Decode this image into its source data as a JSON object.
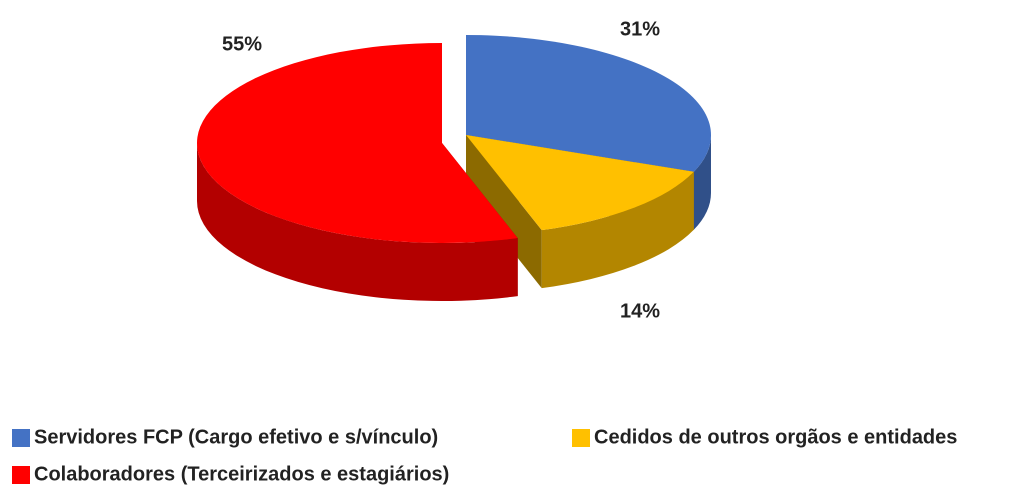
{
  "chart_data": {
    "type": "pie",
    "categories": [
      "Servidores FCP (Cargo efetivo e s/vínculo)",
      "Cedidos de outros orgãos e entidades",
      "Colaboradores (Terceirizados e estagiários)"
    ],
    "values": [
      31,
      14,
      55
    ],
    "value_labels": [
      "31%",
      "14%",
      "55%"
    ],
    "colors": [
      "#4472c4",
      "#ffc000",
      "#ff0000"
    ],
    "legend": "bottom"
  }
}
